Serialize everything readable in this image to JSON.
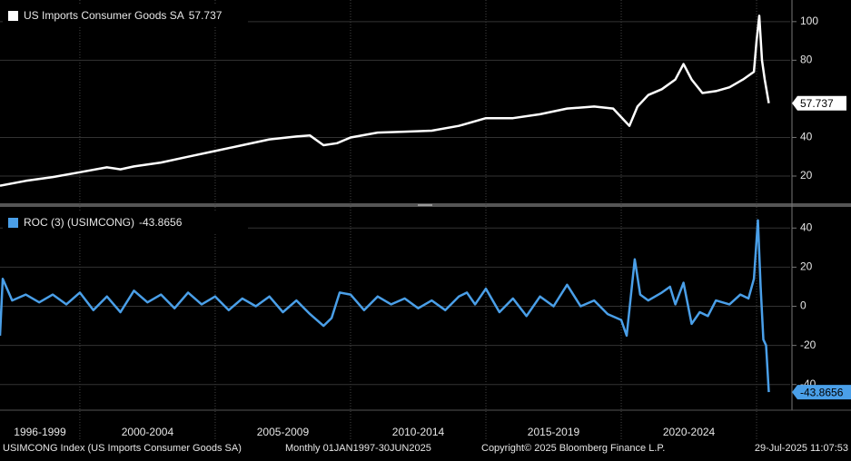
{
  "chart_data": [
    {
      "type": "line",
      "xlim": [
        1997.05,
        2026.24
      ],
      "ylim": [
        5.9,
        111.2
      ],
      "yticks": [
        20,
        40,
        80,
        100
      ],
      "x": [
        1997.05,
        1998,
        1999,
        2000,
        2001,
        2001.5,
        2002,
        2003,
        2004,
        2005,
        2006,
        2007,
        2008,
        2008.5,
        2009,
        2009.5,
        2010,
        2011,
        2012,
        2013,
        2014,
        2015,
        2016,
        2017,
        2018,
        2019,
        2019.7,
        2020.3,
        2020.6,
        2021,
        2021.5,
        2022,
        2022.3,
        2022.6,
        2023,
        2023.5,
        2024,
        2024.5,
        2024.9,
        2025.0,
        2025.1,
        2025.2,
        2025.3,
        2025.45
      ],
      "series": [
        {
          "name": "US Imports Consumer Goods SA",
          "color": "#ffffff",
          "values": [
            15,
            17.5,
            19.5,
            22,
            24.5,
            23.5,
            25,
            27,
            30,
            33,
            36,
            39,
            40.5,
            41,
            36,
            37,
            40,
            42.5,
            43,
            43.5,
            46,
            50,
            50,
            52,
            55,
            56,
            55,
            46,
            56,
            62,
            65,
            70,
            78,
            70,
            63,
            64,
            66,
            70,
            74,
            90,
            103,
            80,
            70,
            57.737
          ]
        }
      ]
    },
    {
      "type": "line",
      "xlim": [
        1997.05,
        2026.24
      ],
      "ylim": [
        -53.1,
        50.8
      ],
      "yticks": [
        -40,
        -20,
        0,
        20,
        40
      ],
      "x": [
        1997.05,
        1997.15,
        1997.5,
        1998,
        1998.5,
        1999,
        1999.5,
        2000,
        2000.5,
        2001,
        2001.5,
        2002,
        2002.5,
        2003,
        2003.5,
        2004,
        2004.5,
        2005,
        2005.5,
        2006,
        2006.5,
        2007,
        2007.5,
        2008,
        2008.5,
        2009,
        2009.3,
        2009.6,
        2010,
        2010.5,
        2011,
        2011.5,
        2012,
        2012.5,
        2013,
        2013.5,
        2014,
        2014.3,
        2014.6,
        2015,
        2015.5,
        2016,
        2016.5,
        2017,
        2017.5,
        2018,
        2018.5,
        2019,
        2019.5,
        2020.0,
        2020.2,
        2020.5,
        2020.7,
        2021,
        2021.5,
        2021.8,
        2022,
        2022.3,
        2022.6,
        2022.9,
        2023.2,
        2023.5,
        2024,
        2024.4,
        2024.7,
        2024.9,
        2025.05,
        2025.15,
        2025.25,
        2025.35,
        2025.45
      ],
      "series": [
        {
          "name": "ROC (3) (USIMCONG)",
          "color": "#4a9fe8",
          "values": [
            -15,
            14,
            3,
            6,
            2,
            6,
            1,
            7,
            -2,
            5,
            -3,
            8,
            2,
            6,
            -1,
            7,
            1,
            5,
            -2,
            4,
            0,
            5,
            -3,
            3,
            -4,
            -10,
            -6,
            7,
            6,
            -2,
            5,
            1,
            4,
            -1,
            3,
            -2,
            5,
            7,
            1,
            9,
            -3,
            4,
            -5,
            5,
            0,
            11,
            0,
            3,
            -4,
            -7,
            -15,
            24,
            6,
            3,
            7,
            10,
            1,
            12,
            -9,
            -3,
            -5,
            3,
            1,
            6,
            4,
            14,
            44,
            10,
            -17,
            -20,
            -43.8656
          ]
        }
      ]
    }
  ],
  "x_axis": {
    "dividers": [
      2000,
      2005,
      2010,
      2015,
      2020,
      2025
    ],
    "period_labels": [
      "1996-1999",
      "2000-2004",
      "2005-2009",
      "2010-2014",
      "2015-2019",
      "2020-2024"
    ]
  },
  "footer": {
    "source": "USIMCONG Index (US Imports Consumer Goods SA)",
    "range": "Monthly 01JAN1997-30JUN2025",
    "copyright": "Copyright© 2025 Bloomberg Finance L.P.",
    "timestamp": "29-Jul-2025 11:07:53"
  }
}
